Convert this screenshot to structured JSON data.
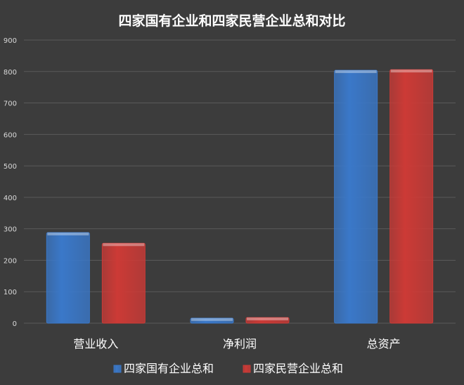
{
  "chart_data": {
    "type": "bar",
    "title": "四家国有企业和四家民营企业总和对比",
    "categories": [
      "营业收入",
      "净利润",
      "总资产"
    ],
    "series": [
      {
        "name": "四家国有企业总和",
        "values": [
          288,
          16,
          804
        ],
        "color": "#3a78c9"
      },
      {
        "name": "四家民营企业总和",
        "values": [
          254,
          18,
          806
        ],
        "color": "#cc3a36"
      }
    ],
    "ylim": [
      0,
      900
    ],
    "yticks": [
      0,
      100,
      200,
      300,
      400,
      500,
      600,
      700,
      800,
      900
    ],
    "grid": true,
    "legend_position": "bottom",
    "xlabel": "",
    "ylabel": ""
  },
  "colors": {
    "background": "#3c3c3c",
    "gridline": "#5a5a5a",
    "text": "#ffffff",
    "tick_text": "#d9d9d9"
  }
}
